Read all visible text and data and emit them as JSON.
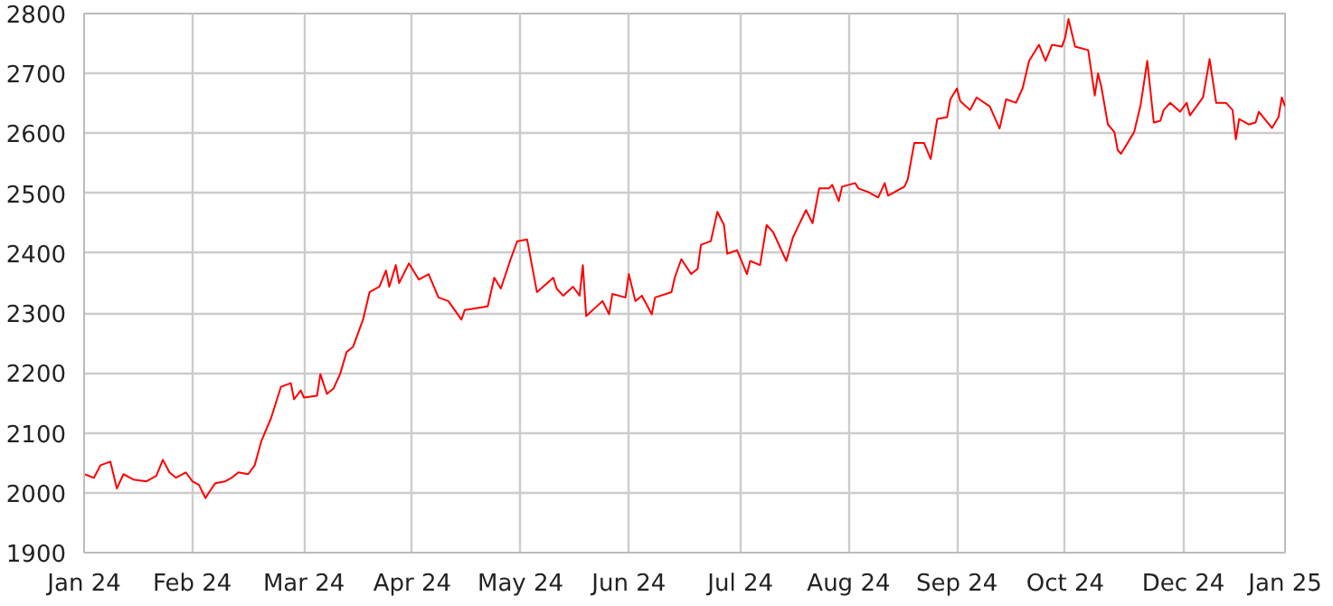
{
  "chart_data": {
    "type": "line",
    "color": "#ff0000",
    "grid": true,
    "marker": "none",
    "line_style": "solid",
    "xlim": [
      "2024-01-01",
      "2025-01-01"
    ],
    "ylim": [
      1900,
      2800
    ],
    "yticks": [
      1900,
      2000,
      2100,
      2200,
      2300,
      2400,
      2500,
      2600,
      2700,
      2800
    ],
    "xticks": [
      {
        "value": "2024-01-01",
        "label": "Jan 24"
      },
      {
        "value": "2024-02-03",
        "label": "Feb 24"
      },
      {
        "value": "2024-03-08",
        "label": "Mar 24"
      },
      {
        "value": "2024-04-10",
        "label": "Apr 24"
      },
      {
        "value": "2024-05-13",
        "label": "May 24"
      },
      {
        "value": "2024-06-15",
        "label": "Jun 24"
      },
      {
        "value": "2024-07-19",
        "label": "Jul 24"
      },
      {
        "value": "2024-08-21",
        "label": "Aug 24"
      },
      {
        "value": "2024-09-23",
        "label": "Sep 24"
      },
      {
        "value": "2024-10-26",
        "label": "Oct 24"
      },
      {
        "value": "2024-12-01",
        "label": "Dec 24"
      },
      {
        "value": "2025-01-01",
        "label": "Jan 25"
      }
    ],
    "x": [
      "2024-01-01",
      "2024-01-04",
      "2024-01-06",
      "2024-01-09",
      "2024-01-11",
      "2024-01-13",
      "2024-01-16",
      "2024-01-20",
      "2024-01-23",
      "2024-01-25",
      "2024-01-27",
      "2024-01-29",
      "2024-02-01",
      "2024-02-03",
      "2024-02-05",
      "2024-02-07",
      "2024-02-08",
      "2024-02-10",
      "2024-02-13",
      "2024-02-15",
      "2024-02-17",
      "2024-02-20",
      "2024-02-22",
      "2024-02-24",
      "2024-02-27",
      "2024-03-01",
      "2024-03-04",
      "2024-03-05",
      "2024-03-07",
      "2024-03-08",
      "2024-03-12",
      "2024-03-13",
      "2024-03-15",
      "2024-03-17",
      "2024-03-19",
      "2024-03-21",
      "2024-03-23",
      "2024-03-26",
      "2024-03-28",
      "2024-03-31",
      "2024-04-02",
      "2024-04-03",
      "2024-04-05",
      "2024-04-06",
      "2024-04-09",
      "2024-04-12",
      "2024-04-15",
      "2024-04-18",
      "2024-04-21",
      "2024-04-25",
      "2024-04-26",
      "2024-05-03",
      "2024-05-05",
      "2024-05-07",
      "2024-05-10",
      "2024-05-12",
      "2024-05-15",
      "2024-05-18",
      "2024-05-23",
      "2024-05-24",
      "2024-05-26",
      "2024-05-29",
      "2024-05-31",
      "2024-06-01",
      "2024-06-02",
      "2024-06-07",
      "2024-06-09",
      "2024-06-10",
      "2024-06-14",
      "2024-06-15",
      "2024-06-17",
      "2024-06-19",
      "2024-06-22",
      "2024-06-23",
      "2024-06-28",
      "2024-06-29",
      "2024-07-01",
      "2024-07-04",
      "2024-07-06",
      "2024-07-07",
      "2024-07-10",
      "2024-07-12",
      "2024-07-14",
      "2024-07-15",
      "2024-07-18",
      "2024-07-21",
      "2024-07-22",
      "2024-07-25",
      "2024-07-27",
      "2024-07-29",
      "2024-08-02",
      "2024-08-04",
      "2024-08-08",
      "2024-08-10",
      "2024-08-12",
      "2024-08-15",
      "2024-08-16",
      "2024-08-18",
      "2024-08-19",
      "2024-08-23",
      "2024-08-24",
      "2024-08-27",
      "2024-08-30",
      "2024-09-01",
      "2024-09-02",
      "2024-09-07",
      "2024-09-08",
      "2024-09-10",
      "2024-09-13",
      "2024-09-15",
      "2024-09-17",
      "2024-09-20",
      "2024-09-21",
      "2024-09-23",
      "2024-09-24",
      "2024-09-27",
      "2024-09-29",
      "2024-10-03",
      "2024-10-06",
      "2024-10-08",
      "2024-10-11",
      "2024-10-13",
      "2024-10-15",
      "2024-10-18",
      "2024-10-20",
      "2024-10-22",
      "2024-10-25",
      "2024-10-26",
      "2024-10-27",
      "2024-10-29",
      "2024-11-02",
      "2024-11-04",
      "2024-11-05",
      "2024-11-06",
      "2024-11-08",
      "2024-11-10",
      "2024-11-11",
      "2024-11-12",
      "2024-11-16",
      "2024-11-18",
      "2024-11-20",
      "2024-11-22",
      "2024-11-24",
      "2024-11-25",
      "2024-11-27",
      "2024-11-30",
      "2024-12-02",
      "2024-12-03",
      "2024-12-07",
      "2024-12-09",
      "2024-12-11",
      "2024-12-14",
      "2024-12-16",
      "2024-12-17",
      "2024-12-18",
      "2024-12-21",
      "2024-12-23",
      "2024-12-24",
      "2024-12-28",
      "2024-12-30",
      "2024-12-31",
      "2025-01-01"
    ],
    "values": [
      2031,
      2025,
      2046,
      2052,
      2007,
      2031,
      2022,
      2019,
      2028,
      2055,
      2034,
      2025,
      2034,
      2019,
      2013,
      1991,
      2000,
      2016,
      2019,
      2025,
      2034,
      2031,
      2046,
      2086,
      2125,
      2177,
      2183,
      2156,
      2171,
      2159,
      2162,
      2198,
      2165,
      2174,
      2198,
      2235,
      2244,
      2289,
      2335,
      2344,
      2371,
      2344,
      2380,
      2350,
      2383,
      2356,
      2365,
      2326,
      2320,
      2289,
      2305,
      2311,
      2359,
      2341,
      2390,
      2420,
      2423,
      2335,
      2359,
      2341,
      2329,
      2344,
      2329,
      2380,
      2295,
      2320,
      2298,
      2332,
      2326,
      2365,
      2320,
      2329,
      2298,
      2326,
      2335,
      2359,
      2390,
      2365,
      2374,
      2414,
      2420,
      2469,
      2447,
      2399,
      2405,
      2365,
      2387,
      2380,
      2447,
      2435,
      2387,
      2426,
      2472,
      2450,
      2508,
      2508,
      2514,
      2487,
      2511,
      2517,
      2508,
      2502,
      2493,
      2517,
      2496,
      2511,
      2523,
      2584,
      2584,
      2557,
      2624,
      2627,
      2657,
      2675,
      2654,
      2639,
      2660,
      2645,
      2608,
      2657,
      2651,
      2675,
      2721,
      2748,
      2721,
      2748,
      2745,
      2760,
      2791,
      2745,
      2739,
      2663,
      2700,
      2678,
      2615,
      2602,
      2572,
      2566,
      2602,
      2648,
      2721,
      2618,
      2621,
      2639,
      2651,
      2636,
      2651,
      2630,
      2660,
      2724,
      2651,
      2651,
      2639,
      2590,
      2624,
      2615,
      2618,
      2636,
      2609,
      2627,
      2660,
      2645
    ]
  }
}
